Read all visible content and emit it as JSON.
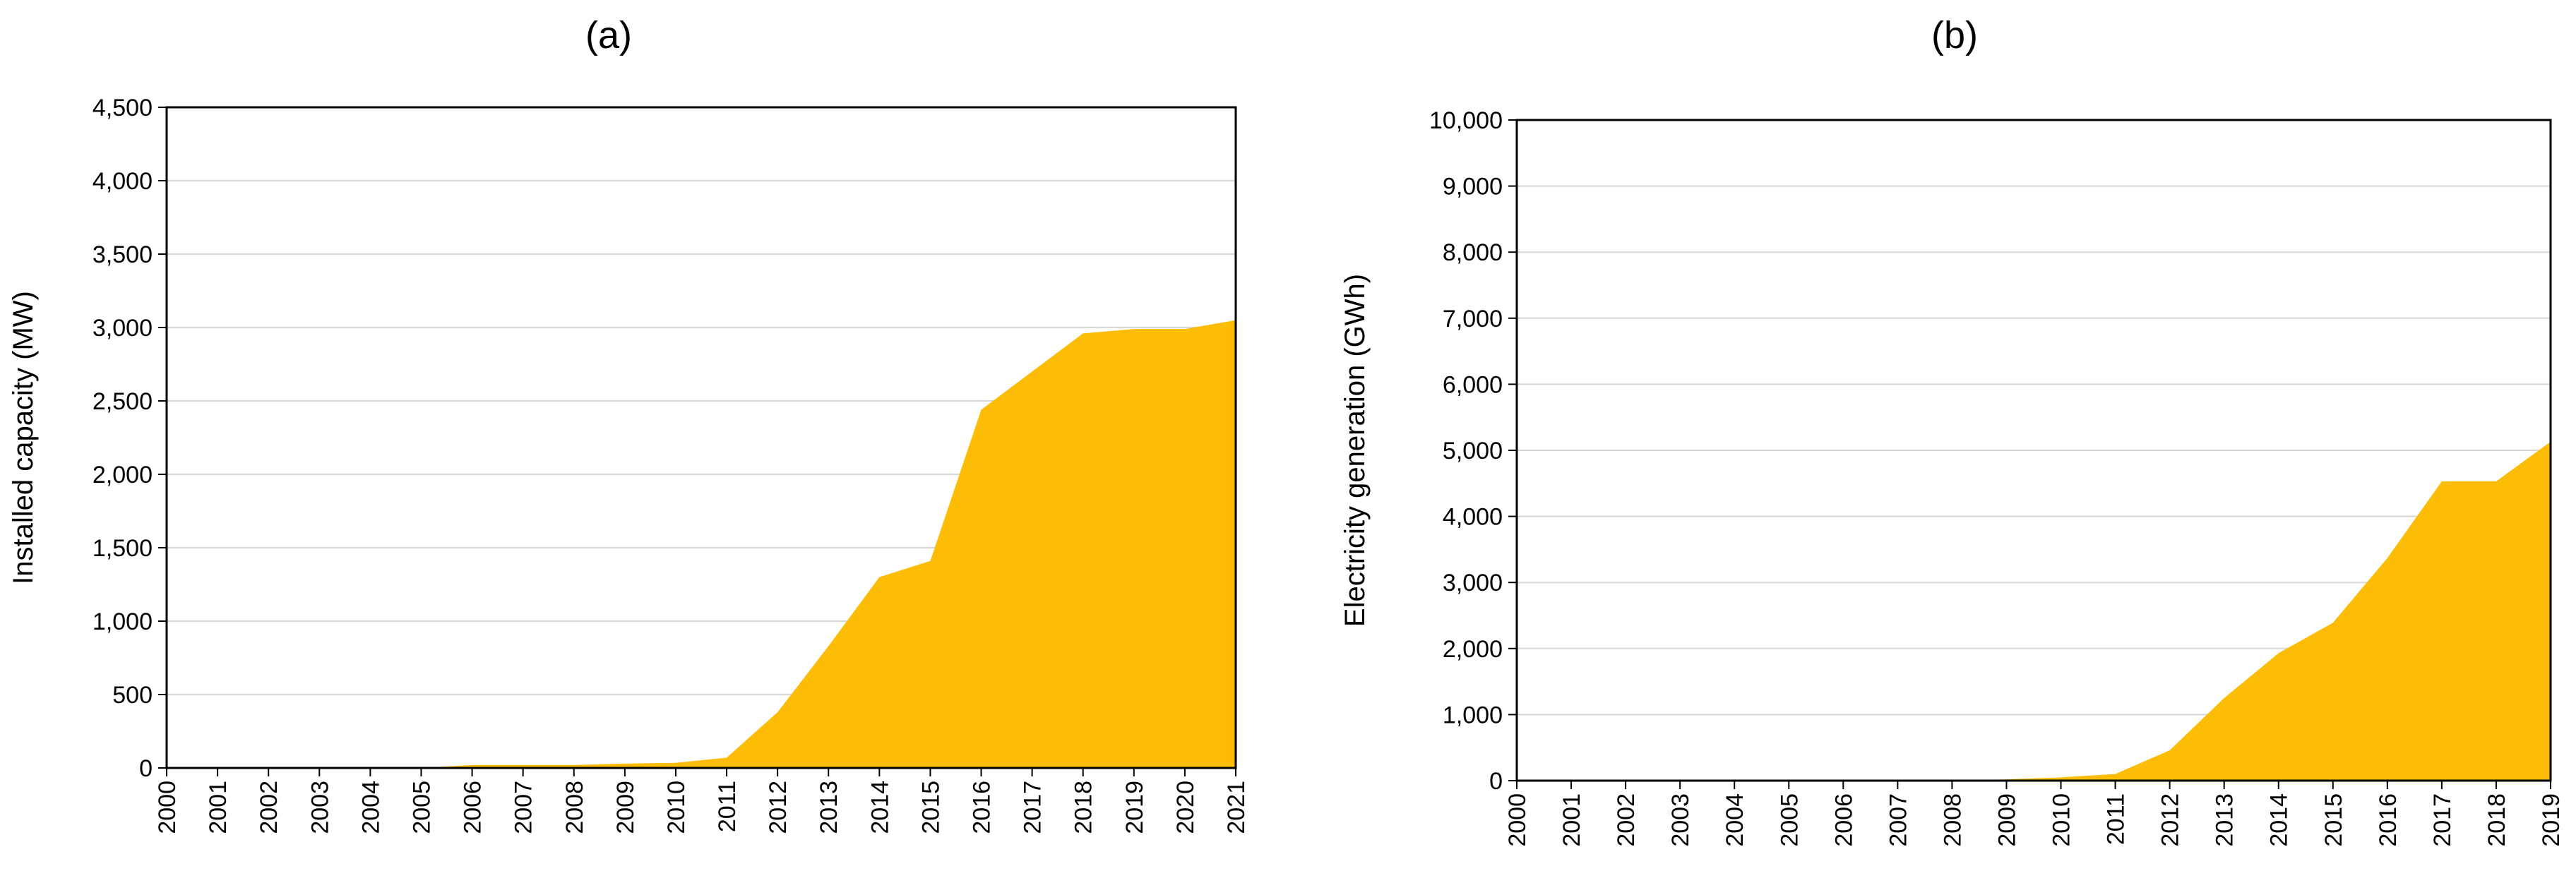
{
  "chart_data": [
    {
      "type": "area",
      "title": "(a)",
      "xlabel": "",
      "ylabel": "Installed capacity (MW)",
      "x": [
        "2000",
        "2001",
        "2002",
        "2003",
        "2004",
        "2005",
        "2006",
        "2007",
        "2008",
        "2009",
        "2010",
        "2011",
        "2012",
        "2013",
        "2014",
        "2015",
        "2016",
        "2017",
        "2018",
        "2019",
        "2020",
        "2021"
      ],
      "y_ticks": [
        "0",
        "500",
        "1,000",
        "1,500",
        "2,000",
        "2,500",
        "3,000",
        "3,500",
        "4,000",
        "4,500"
      ],
      "ylim": [
        0,
        4500
      ],
      "grid": true,
      "series": [
        {
          "color": "#FDBD07",
          "values": [
            0,
            0,
            0,
            0,
            0,
            0,
            20,
            20,
            20,
            30,
            35,
            70,
            380,
            830,
            1300,
            1410,
            2440,
            2700,
            2960,
            2990,
            2990,
            3050
          ]
        }
      ]
    },
    {
      "type": "area",
      "title": "(b)",
      "xlabel": "",
      "ylabel": "Electricity generation (GWh)",
      "x": [
        "2000",
        "2001",
        "2002",
        "2003",
        "2004",
        "2005",
        "2006",
        "2007",
        "2008",
        "2009",
        "2010",
        "2011",
        "2012",
        "2013",
        "2014",
        "2015",
        "2016",
        "2017",
        "2018",
        "2019"
      ],
      "y_ticks": [
        "0",
        "1,000",
        "2,000",
        "3,000",
        "4,000",
        "5,000",
        "6,000",
        "7,000",
        "8,000",
        "9,000",
        "10,000"
      ],
      "ylim": [
        0,
        10000
      ],
      "grid": true,
      "series": [
        {
          "color": "#FDBD07",
          "values": [
            0,
            0,
            0,
            0,
            0,
            0,
            0,
            0,
            0,
            20,
            50,
            100,
            460,
            1250,
            1930,
            2390,
            3370,
            4530,
            4530,
            5130
          ]
        }
      ]
    }
  ]
}
